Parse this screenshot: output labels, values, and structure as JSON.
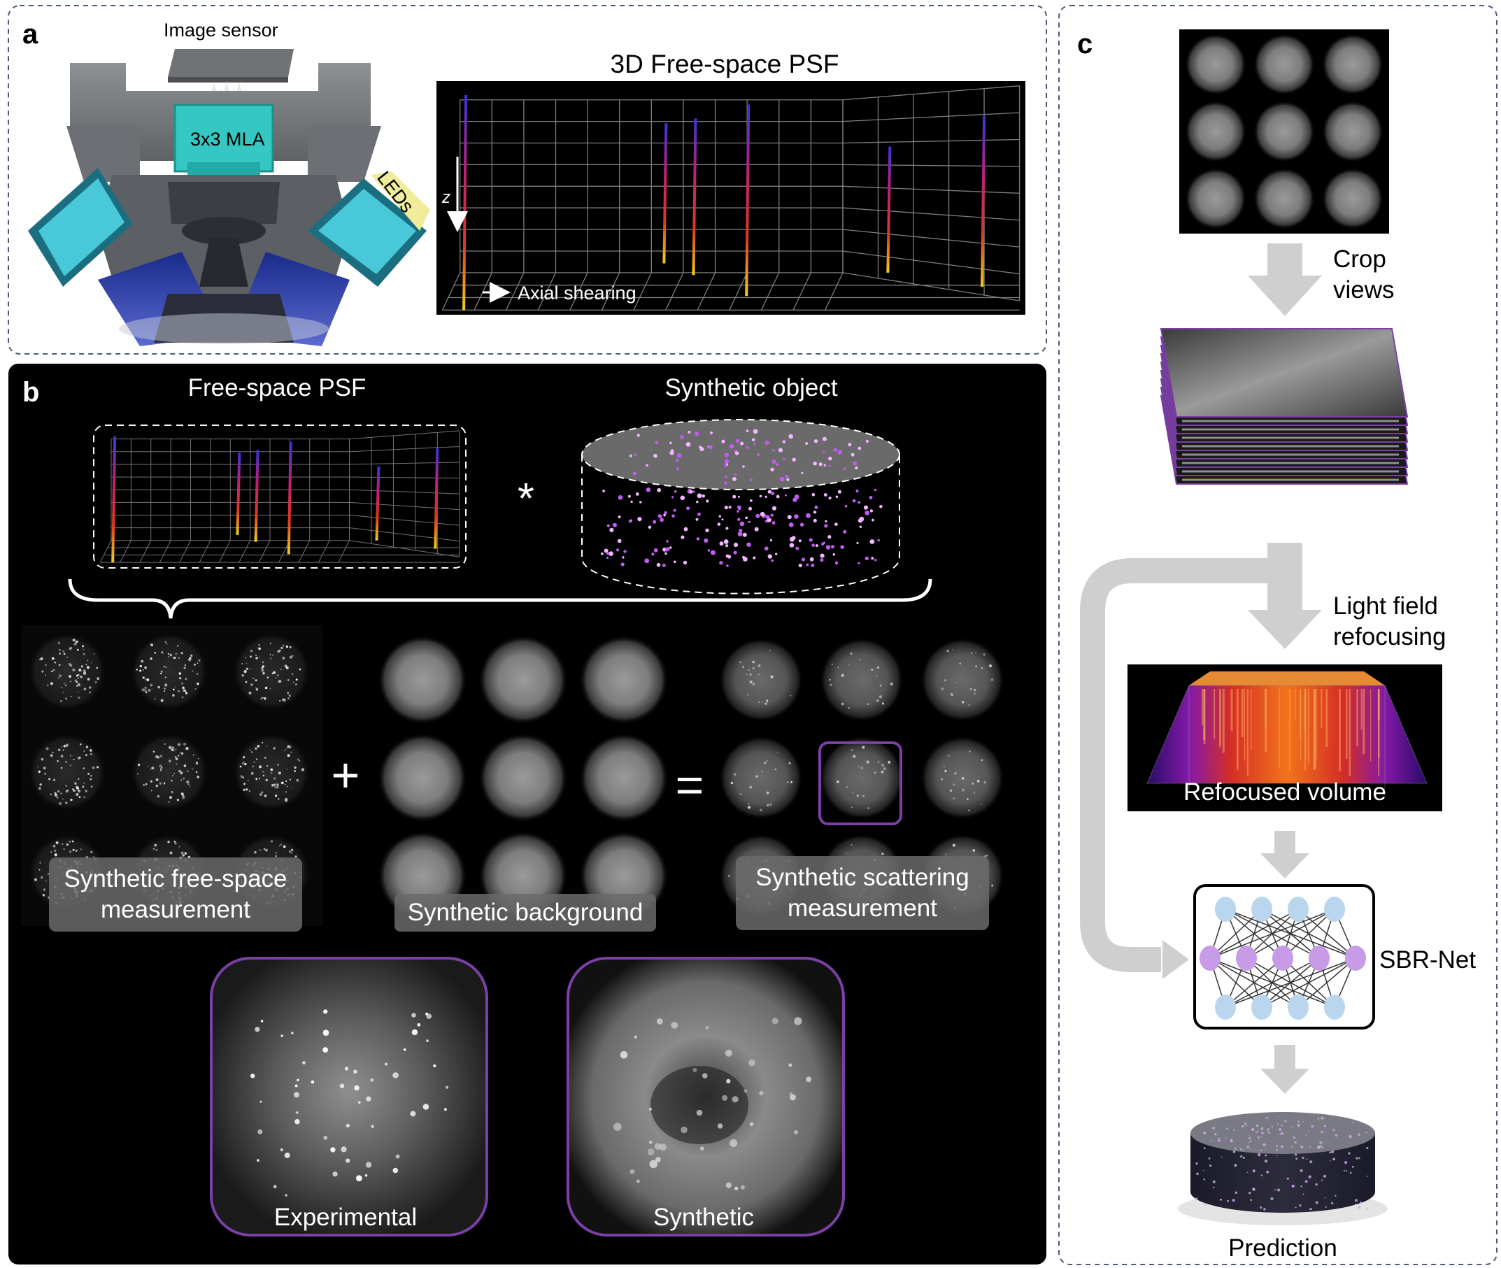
{
  "panel_a": {
    "letter": "a",
    "image_sensor": "Image sensor",
    "mla": "3x3 MLA",
    "leds": "LEDs",
    "psf_title": "3D Free-space PSF",
    "axis_z": "z",
    "axial_shearing": "Axial shearing"
  },
  "panel_b": {
    "letter": "b",
    "free_space_psf": "Free-space PSF",
    "synthetic_object": "Synthetic object",
    "convolution_symbol": "*",
    "plus_symbol": "+",
    "equals_symbol": "=",
    "free_space_measurement": [
      "Synthetic free-space",
      "measurement"
    ],
    "background": "Synthetic background",
    "scattering_measurement": [
      "Synthetic scattering",
      "measurement"
    ],
    "experimental": "Experimental",
    "synthetic": "Synthetic"
  },
  "panel_c": {
    "letter": "c",
    "crop_views": [
      "Crop",
      "views"
    ],
    "light_field_refocusing": [
      "Light field",
      "refocusing"
    ],
    "refocused_volume": "Refocused volume",
    "network": "SBR-Net",
    "prediction": "Prediction"
  },
  "colors": {
    "dashed_border": "#4a5a78",
    "panel_b_bg": "#000000",
    "frame_purple": "#7b3fa6",
    "arrow_gray": "#cfcfcf",
    "node_blue": "#b9d6ee",
    "node_purple": "#c79be6"
  }
}
